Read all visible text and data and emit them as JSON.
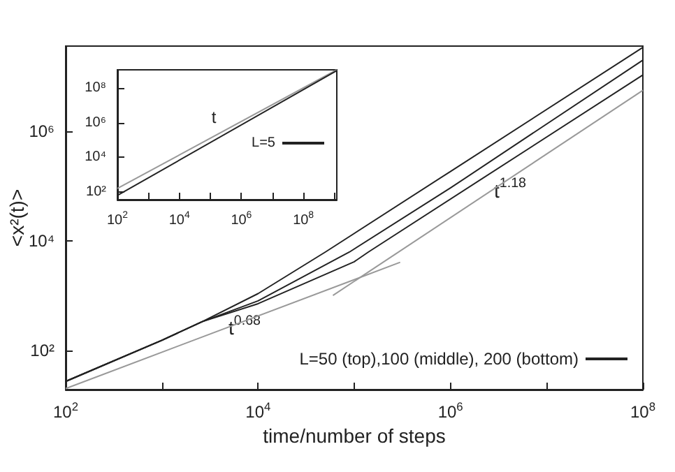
{
  "chart_data": [
    {
      "type": "line",
      "xlabel": "time/number of steps",
      "ylabel": "<x²(t)>",
      "log": "xy",
      "grid": false,
      "legend": "bottom right",
      "marker": "none",
      "line_style": "solid",
      "xlim": [
        100,
        100000000
      ],
      "ylim": [
        19.5,
        36000000
      ],
      "xticks": [
        {
          "value": 100,
          "label": "10$^{2}$"
        },
        {
          "value": 1000,
          "label": null
        },
        {
          "value": 10000,
          "label": "10$^{4}$"
        },
        {
          "value": 100000,
          "label": null
        },
        {
          "value": 1000000,
          "label": "10$^{6}$"
        },
        {
          "value": 10000000,
          "label": null
        },
        {
          "value": 100000000,
          "label": "10$^{8}$"
        }
      ],
      "yticks": [
        {
          "value": 100,
          "label": "10²"
        },
        {
          "value": 10000,
          "label": "10⁴"
        },
        {
          "value": 1000000,
          "label": "10⁶"
        }
      ],
      "series": [
        {
          "name": "L=50 (top),100 (middle), 200 (bottom)",
          "color": "#222222",
          "x": [
            100,
            1000,
            2630,
            10000,
            50000,
            1000000,
            100000000
          ],
          "values": [
            27.5,
            155,
            339,
            1100,
            6300,
            186000,
            34000000
          ]
        },
        {
          "color": "#222222",
          "x": [
            100,
            1000,
            2630,
            10000,
            89000,
            1000000,
            100000000
          ],
          "values": [
            27.5,
            155,
            339,
            810,
            6300,
            93000,
            20000000
          ]
        },
        {
          "color": "#222222",
          "x": [
            100,
            1000,
            2630,
            10000,
            100000,
            140000,
            100000000
          ],
          "values": [
            27.5,
            155,
            339,
            720,
            4200,
            6300,
            10700000
          ]
        },
        {
          "color": "#999999",
          "x": [
            100,
            300000
          ],
          "values": [
            20.4,
            4100
          ]
        },
        {
          "color": "#999999",
          "x": [
            60000,
            100000000
          ],
          "values": [
            1020,
            5600000
          ]
        }
      ],
      "annotations": [
        "t$^{0.68}$",
        "t$^{1.18}$"
      ]
    },
    {
      "type": "line",
      "log": "xy",
      "grid": false,
      "legend": "right",
      "marker": "none",
      "line_style": "solid",
      "xlim": [
        100,
        1200000000
      ],
      "ylim": [
        36,
        1100000000
      ],
      "xticks": [
        {
          "value": 100,
          "label": "10$^{2}$"
        },
        {
          "value": 1000,
          "label": null
        },
        {
          "value": 10000,
          "label": "10$^{4}$"
        },
        {
          "value": 100000,
          "label": null
        },
        {
          "value": 1000000,
          "label": "10$^{6}$"
        },
        {
          "value": 10000000,
          "label": null
        },
        {
          "value": 100000000,
          "label": "10$^{8}$"
        },
        {
          "value": 1000000000,
          "label": null
        }
      ],
      "yticks": [
        {
          "value": 100,
          "label": "10²"
        },
        {
          "value": 10000,
          "label": "10⁴"
        },
        {
          "value": 1000000,
          "label": "10⁶"
        },
        {
          "value": 100000000,
          "label": "10⁸"
        }
      ],
      "series": [
        {
          "color": "#999999",
          "x": [
            100,
            1200000000
          ],
          "values": [
            160,
            1100000000
          ]
        },
        {
          "name": "L=5",
          "color": "#222222",
          "x": [
            100,
            1200000000
          ],
          "values": [
            63,
            1000000000
          ]
        }
      ],
      "annotations": [
        "t"
      ]
    }
  ]
}
